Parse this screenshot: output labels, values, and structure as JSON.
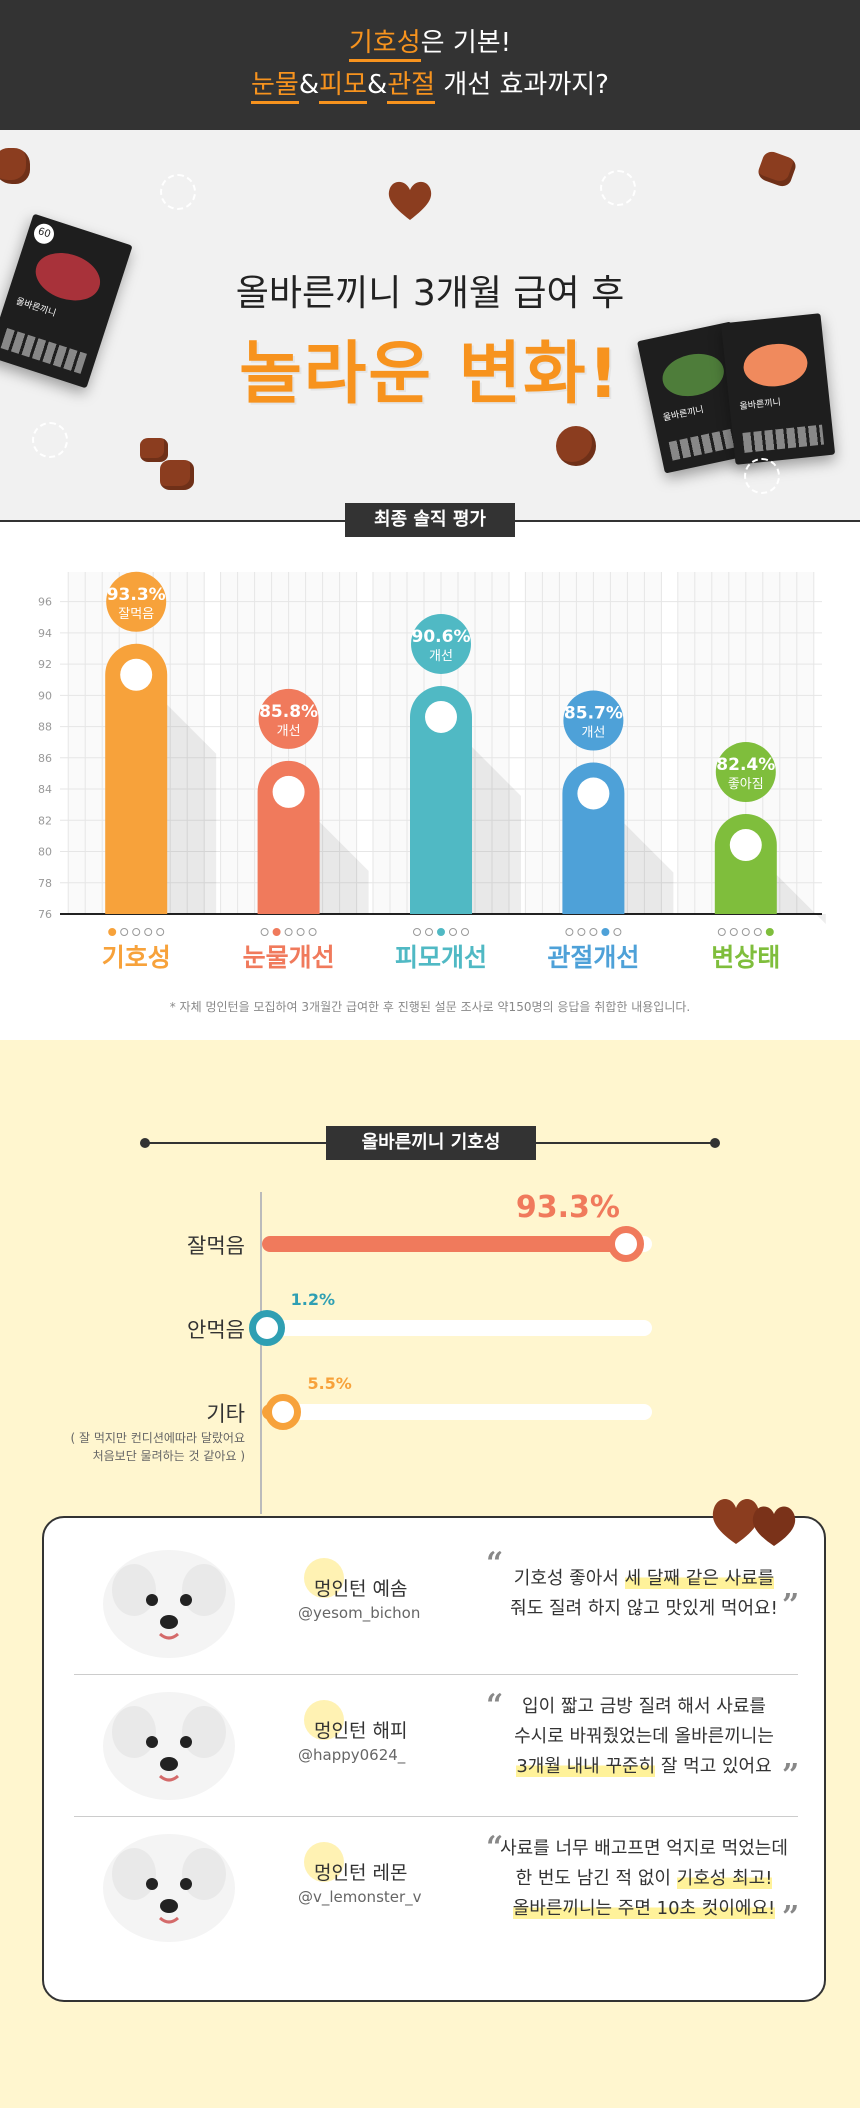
{
  "top_banner": {
    "line1_hl": "기호성",
    "line1_rest": "은 기본!",
    "line2_a": "눈물",
    "line2_amp1": "&",
    "line2_b": "피모",
    "line2_amp2": "&",
    "line2_c": "관절",
    "line2_rest": " 개선 효과까지?"
  },
  "hero": {
    "headline": "올바른끼니 3개월 급여 후",
    "headline_big": "놀라운 변화!",
    "bag_brand": "올바른끼니",
    "bag_count": "60"
  },
  "chart_section": {
    "label": "최종 솔직 평가",
    "footnote": "* 자체 멍인턴을 모집하여 3개월간 급여한 후 진행된 설문 조사로 약150명의 응답을 취합한 내용입니다."
  },
  "chart_data": {
    "type": "bar",
    "categories": [
      "기호성",
      "눈물개선",
      "피모개선",
      "관절개선",
      "변상태"
    ],
    "values": [
      93.3,
      85.8,
      90.6,
      85.7,
      82.4
    ],
    "value_labels": [
      "93.3%",
      "85.8%",
      "90.6%",
      "85.7%",
      "82.4%"
    ],
    "value_sublabels": [
      "잘먹음",
      "개선",
      "개선",
      "개선",
      "좋아짐"
    ],
    "colors": [
      "#f7a23b",
      "#f07a5c",
      "#50b9c4",
      "#4ea1d8",
      "#7fbe3c"
    ],
    "yticks": [
      76,
      78,
      80,
      82,
      84,
      86,
      88,
      90,
      92,
      94,
      96
    ],
    "ylim": [
      76,
      97
    ],
    "grid": true
  },
  "pref_section": {
    "title": "올바른끼니 기호성",
    "rows": [
      {
        "label": "잘먹음",
        "value": 93.3,
        "pct": "93.3%",
        "color": "#f07a5c"
      },
      {
        "label": "안먹음",
        "value": 1.2,
        "pct": "1.2%",
        "color": "#2f9fb3"
      },
      {
        "label": "기타",
        "value": 5.5,
        "pct": "5.5%",
        "color": "#f7a23b"
      }
    ],
    "other_note_1": "( 잘 먹지만 컨디션에따라 달랐어요",
    "other_note_2": "처음보단 물려하는 것 같아요 )"
  },
  "reviews": [
    {
      "name": "멍인턴 예솜",
      "handle": "@yesom_bichon",
      "lines": [
        {
          "a": "기호성 좋아서 ",
          "hl": "세 달째 같은 사료를",
          "b": ""
        },
        {
          "a": "줘도 질려 하지 않고 맛있게 먹어요!",
          "hl": "",
          "b": ""
        }
      ]
    },
    {
      "name": "멍인턴 해피",
      "handle": "@happy0624_",
      "lines": [
        {
          "a": "입이 짧고 금방 질려 해서 사료를",
          "hl": "",
          "b": ""
        },
        {
          "a": "수시로 바꿔줬었는데 올바른끼니는",
          "hl": "",
          "b": ""
        },
        {
          "a": "",
          "hl": "3개월 내내 꾸준히",
          "b": " 잘 먹고 있어요"
        }
      ]
    },
    {
      "name": "멍인턴 레몬",
      "handle": "@v_lemonster_v",
      "lines": [
        {
          "a": "사료를 너무 배고프면 억지로 먹었는데",
          "hl": "",
          "b": ""
        },
        {
          "a": "한 번도 남긴 적 없이 ",
          "hl": "기호성 최고!",
          "b": ""
        },
        {
          "a": "",
          "hl": "올바른끼니는 주면 10초 컷이에요!",
          "b": ""
        }
      ]
    }
  ]
}
